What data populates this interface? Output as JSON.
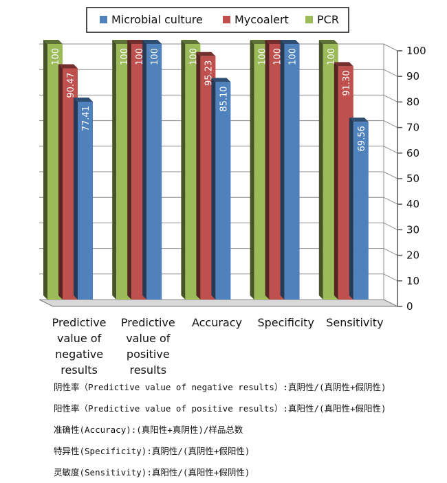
{
  "chart_data": {
    "type": "bar",
    "style": "3d-clustered-column",
    "categories": [
      [
        "Predictive",
        "value of",
        "negative",
        "results"
      ],
      [
        "Predictive",
        "value of",
        "positive",
        "results"
      ],
      [
        "Accuracy"
      ],
      [
        "Specificity"
      ],
      [
        "Sensitivity"
      ]
    ],
    "series": [
      {
        "name": "PCR",
        "color": "#9bbb59",
        "values": [
          100,
          100,
          100,
          100,
          100
        ],
        "labels": [
          "100",
          "100",
          "100",
          "100",
          "100"
        ]
      },
      {
        "name": "Mycoalert",
        "color": "#c0504d",
        "values": [
          90.47,
          100,
          95.23,
          100,
          91.3
        ],
        "labels": [
          "90.47",
          "100",
          "95.23",
          "100",
          "91.30"
        ]
      },
      {
        "name": "Microbial culture",
        "color": "#4f81bd",
        "values": [
          77.41,
          100,
          85.1,
          100,
          69.56
        ],
        "labels": [
          "77.41",
          "100",
          "85.10",
          "100",
          "69.56"
        ]
      }
    ],
    "legend": {
      "position": "top",
      "entries": [
        {
          "name": "Microbial culture",
          "color": "#4f81bd"
        },
        {
          "name": "Mycoalert",
          "color": "#c0504d"
        },
        {
          "name": "PCR",
          "color": "#9bbb59"
        }
      ]
    },
    "yaxis": {
      "position": "right",
      "ylim": [
        0,
        100
      ],
      "ticks": [
        "0",
        "10",
        "20",
        "30",
        "40",
        "50",
        "60",
        "70",
        "80",
        "90",
        "100"
      ]
    },
    "grid": true
  },
  "notes": [
    "阴性率（Predictive value of negative results）:真阴性/(真阴性+假阴性)",
    "阳性率（Predictive value of positive results）:真阳性/(真阳性+假阳性)",
    "准确性(Accuracy):(真阳性+真阴性)/样品总数",
    "特异性(Specificity):真阴性/(真阴性+假阳性)",
    "灵敏度(Sensitivity):真阳性/(真阳性+假阴性)"
  ]
}
